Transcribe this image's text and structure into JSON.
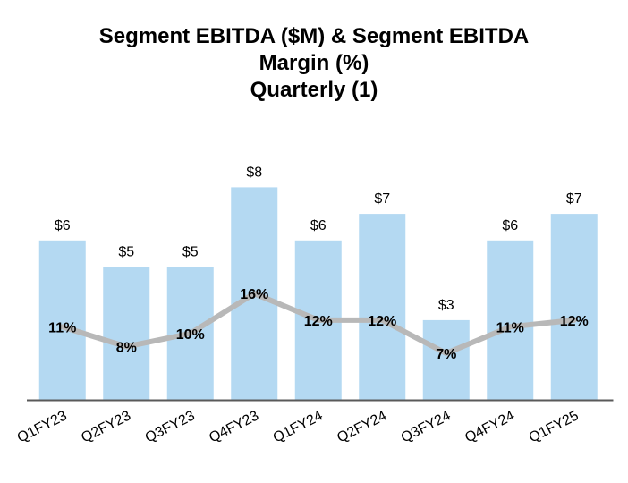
{
  "chart_data": {
    "type": "bar",
    "title_lines": [
      "Segment EBITDA ($M) & Segment EBITDA",
      "Margin (%)",
      "Quarterly (1)"
    ],
    "categories": [
      "Q1FY23",
      "Q2FY23",
      "Q3FY23",
      "Q4FY23",
      "Q1FY24",
      "Q2FY24",
      "Q3FY24",
      "Q4FY24",
      "Q1FY25"
    ],
    "series": [
      {
        "type": "bar",
        "values": [
          6,
          5,
          5,
          8,
          6,
          7,
          3,
          6,
          7
        ],
        "labels": [
          "$6",
          "$5",
          "$5",
          "$8",
          "$6",
          "$7",
          "$3",
          "$6",
          "$7"
        ],
        "color": "#b4d9f2"
      },
      {
        "type": "line",
        "values": [
          11,
          8,
          10,
          16,
          12,
          12,
          7,
          11,
          12
        ],
        "labels": [
          "11%",
          "8%",
          "10%",
          "16%",
          "12%",
          "12%",
          "7%",
          "11%",
          "12%"
        ],
        "color": "#b8b8b8"
      }
    ],
    "bar_ylim": [
      0,
      10
    ],
    "line_ylim": [
      0,
      40
    ],
    "grid": false,
    "legend": "none",
    "axis_color": "#595959"
  }
}
